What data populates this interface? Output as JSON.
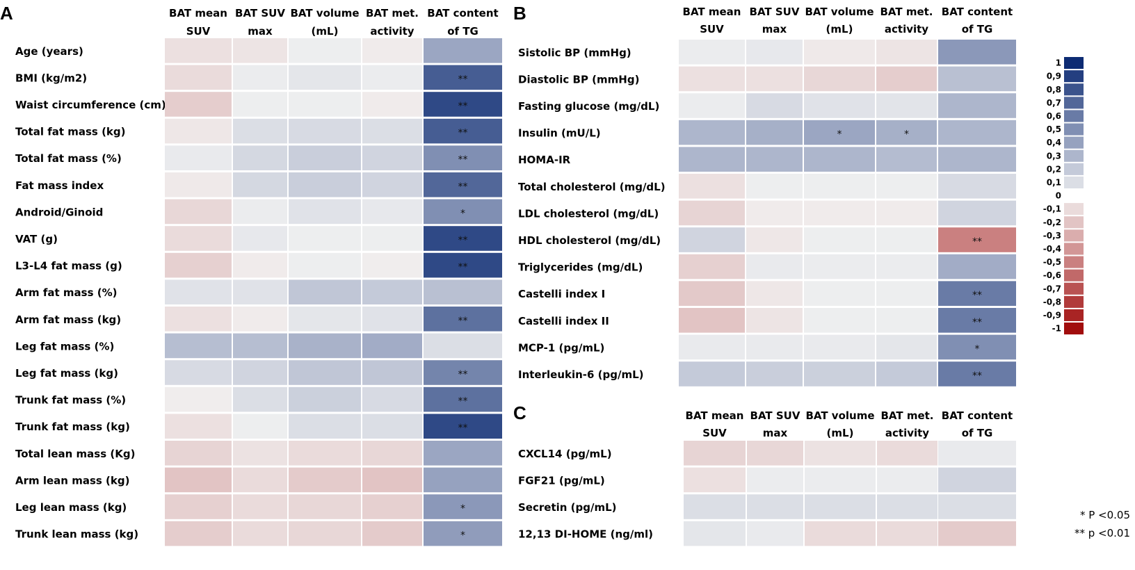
{
  "chart_data": [
    {
      "type": "heatmap",
      "panel": "A",
      "columns": [
        "BAT mean SUV",
        "BAT SUV max",
        "BAT volume (mL)",
        "BAT met. activity",
        "BAT content of TG"
      ],
      "rows": [
        "Age (years)",
        "BMI (kg/m2)",
        "Waist circumference (cm)",
        "Total fat mass (kg)",
        "Total fat mass (%)",
        "Fat mass index",
        "Android/Ginoid",
        "VAT (g)",
        "L3-L4 fat mass (g)",
        "Arm fat mass (%)",
        "Arm fat mass (kg)",
        "Leg fat mass (%)",
        "Leg fat mass (kg)",
        "Trunk fat mass (%)",
        "Trunk fat mass (kg)",
        "Total lean mass (Kg)",
        "Arm lean mass (kg)",
        "Leg lean mass (kg)",
        "Trunk lean mass (kg)"
      ],
      "values": [
        [
          -0.08,
          -0.06,
          0.02,
          -0.03,
          0.38
        ],
        [
          -0.1,
          0.03,
          0.06,
          0.03,
          0.75
        ],
        [
          -0.16,
          0.02,
          0.02,
          -0.03,
          0.85
        ],
        [
          -0.05,
          0.1,
          0.12,
          0.1,
          0.75
        ],
        [
          0.04,
          0.13,
          0.18,
          0.15,
          0.5
        ],
        [
          -0.04,
          0.13,
          0.18,
          0.15,
          0.7
        ],
        [
          -0.12,
          0.03,
          0.08,
          0.05,
          0.5
        ],
        [
          -0.1,
          0.05,
          0.02,
          0.02,
          0.85
        ],
        [
          -0.15,
          -0.03,
          0.02,
          -0.02,
          0.85
        ],
        [
          0.08,
          0.08,
          0.22,
          0.2,
          0.25
        ],
        [
          -0.08,
          -0.03,
          0.06,
          0.08,
          0.65
        ],
        [
          0.26,
          0.26,
          0.32,
          0.35,
          0.1
        ],
        [
          0.12,
          0.15,
          0.22,
          0.22,
          0.55
        ],
        [
          -0.02,
          0.1,
          0.17,
          0.12,
          0.65
        ],
        [
          -0.08,
          0.02,
          0.1,
          0.1,
          0.85
        ],
        [
          -0.13,
          -0.07,
          -0.1,
          -0.12,
          0.38
        ],
        [
          -0.2,
          -0.1,
          -0.17,
          -0.2,
          0.4
        ],
        [
          -0.15,
          -0.1,
          -0.12,
          -0.15,
          0.45
        ],
        [
          -0.16,
          -0.1,
          -0.12,
          -0.17,
          0.43
        ]
      ],
      "significance": [
        [
          "",
          "",
          "",
          "",
          ""
        ],
        [
          "",
          "",
          "",
          "",
          "**"
        ],
        [
          "",
          "",
          "",
          "",
          "**"
        ],
        [
          "",
          "",
          "",
          "",
          "**"
        ],
        [
          "",
          "",
          "",
          "",
          "**"
        ],
        [
          "",
          "",
          "",
          "",
          "**"
        ],
        [
          "",
          "",
          "",
          "",
          "*"
        ],
        [
          "",
          "",
          "",
          "",
          "**"
        ],
        [
          "",
          "",
          "",
          "",
          "**"
        ],
        [
          "",
          "",
          "",
          "",
          ""
        ],
        [
          "",
          "",
          "",
          "",
          "**"
        ],
        [
          "",
          "",
          "",
          "",
          ""
        ],
        [
          "",
          "",
          "",
          "",
          "**"
        ],
        [
          "",
          "",
          "",
          "",
          "**"
        ],
        [
          "",
          "",
          "",
          "",
          "**"
        ],
        [
          "",
          "",
          "",
          "",
          ""
        ],
        [
          "",
          "",
          "",
          "",
          ""
        ],
        [
          "",
          "",
          "",
          "",
          "*"
        ],
        [
          "",
          "",
          "",
          "",
          "*"
        ]
      ]
    },
    {
      "type": "heatmap",
      "panel": "B",
      "columns": [
        "BAT mean SUV",
        "BAT SUV max",
        "BAT volume (mL)",
        "BAT met. activity",
        "BAT content of TG"
      ],
      "rows": [
        "Sistolic BP (mmHg)",
        "Diastolic BP (mmHg)",
        "Fasting glucose (mg/dL)",
        "Insulin (mU/L)",
        "HOMA-IR",
        "Total cholesterol (mg/dL)",
        "LDL cholesterol (mg/dL)",
        "HDL cholesterol (mg/dL)",
        "Triglycerides (mg/dL)",
        "Castelli index I",
        "Castelli index II",
        "MCP-1 (pg/mL)",
        "Interleukin-6 (pg/mL)"
      ],
      "values": [
        [
          0.03,
          0.05,
          -0.04,
          -0.06,
          0.45
        ],
        [
          -0.08,
          -0.08,
          -0.12,
          -0.16,
          0.25
        ],
        [
          0.03,
          0.12,
          0.08,
          0.07,
          0.3
        ],
        [
          0.3,
          0.33,
          0.38,
          0.33,
          0.3
        ],
        [
          0.3,
          0.3,
          0.3,
          0.27,
          0.3
        ],
        [
          -0.08,
          0.02,
          0.02,
          0.02,
          0.12
        ],
        [
          -0.13,
          -0.03,
          -0.03,
          -0.03,
          0.15
        ],
        [
          0.15,
          -0.05,
          0.02,
          0.02,
          -0.5
        ],
        [
          -0.15,
          0.04,
          0.03,
          0.03,
          0.35
        ],
        [
          -0.18,
          -0.05,
          0.02,
          0.02,
          0.6
        ],
        [
          -0.2,
          -0.06,
          0.02,
          0.02,
          0.6
        ],
        [
          0.04,
          0.04,
          0.04,
          0.06,
          0.5
        ],
        [
          0.2,
          0.18,
          0.17,
          0.2,
          0.6
        ]
      ],
      "significance": [
        [
          "",
          "",
          "",
          "",
          ""
        ],
        [
          "",
          "",
          "",
          "",
          ""
        ],
        [
          "",
          "",
          "",
          "",
          ""
        ],
        [
          "",
          "",
          "*",
          "*",
          ""
        ],
        [
          "",
          "",
          "",
          "",
          ""
        ],
        [
          "",
          "",
          "",
          "",
          ""
        ],
        [
          "",
          "",
          "",
          "",
          ""
        ],
        [
          "",
          "",
          "",
          "",
          "**"
        ],
        [
          "",
          "",
          "",
          "",
          ""
        ],
        [
          "",
          "",
          "",
          "",
          "**"
        ],
        [
          "",
          "",
          "",
          "",
          "**"
        ],
        [
          "",
          "",
          "",
          "",
          "*"
        ],
        [
          "",
          "",
          "",
          "",
          "**"
        ]
      ]
    },
    {
      "type": "heatmap",
      "panel": "C",
      "columns": [
        "BAT mean SUV",
        "BAT SUV max",
        "BAT volume (mL)",
        "BAT met. activity",
        "BAT content of TG"
      ],
      "rows": [
        "CXCL14 (pg/mL)",
        "FGF21 (pg/mL)",
        "Secretin (pg/mL)",
        "12,13 DI-HOME (ng/ml)"
      ],
      "values": [
        [
          -0.13,
          -0.12,
          -0.07,
          -0.1,
          0.04
        ],
        [
          -0.08,
          0.03,
          0.03,
          0.03,
          0.15
        ],
        [
          0.1,
          0.1,
          0.1,
          0.1,
          0.1
        ],
        [
          0.06,
          0.04,
          -0.1,
          -0.1,
          -0.17
        ]
      ],
      "significance": [
        [
          "",
          "",
          "",
          "",
          ""
        ],
        [
          "",
          "",
          "",
          "",
          ""
        ],
        [
          "",
          "",
          "",
          "",
          ""
        ],
        [
          "",
          "",
          "",
          "",
          ""
        ]
      ]
    }
  ],
  "legend": {
    "ticks": [
      "1",
      "0,9",
      "0,8",
      "0,7",
      "0,6",
      "0,5",
      "0,4",
      "0,3",
      "0,2",
      "0,1",
      "0",
      "-0,1",
      "-0,2",
      "-0,3",
      "-0,4",
      "-0,5",
      "-0,6",
      "-0,7",
      "-0,8",
      "-0,9",
      "-1"
    ],
    "values": [
      1,
      0.9,
      0.8,
      0.7,
      0.6,
      0.5,
      0.4,
      0.3,
      0.2,
      0.1,
      0,
      -0.1,
      -0.2,
      -0.3,
      -0.4,
      -0.5,
      -0.6,
      -0.7,
      -0.8,
      -0.9,
      -1
    ]
  },
  "significance_notes": [
    "* P <0.05",
    "** p <0.01"
  ],
  "colors": {
    "positive_max": "#0d2b73",
    "negative_max": "#a10d0d",
    "neutral": "#f2f2f2"
  }
}
